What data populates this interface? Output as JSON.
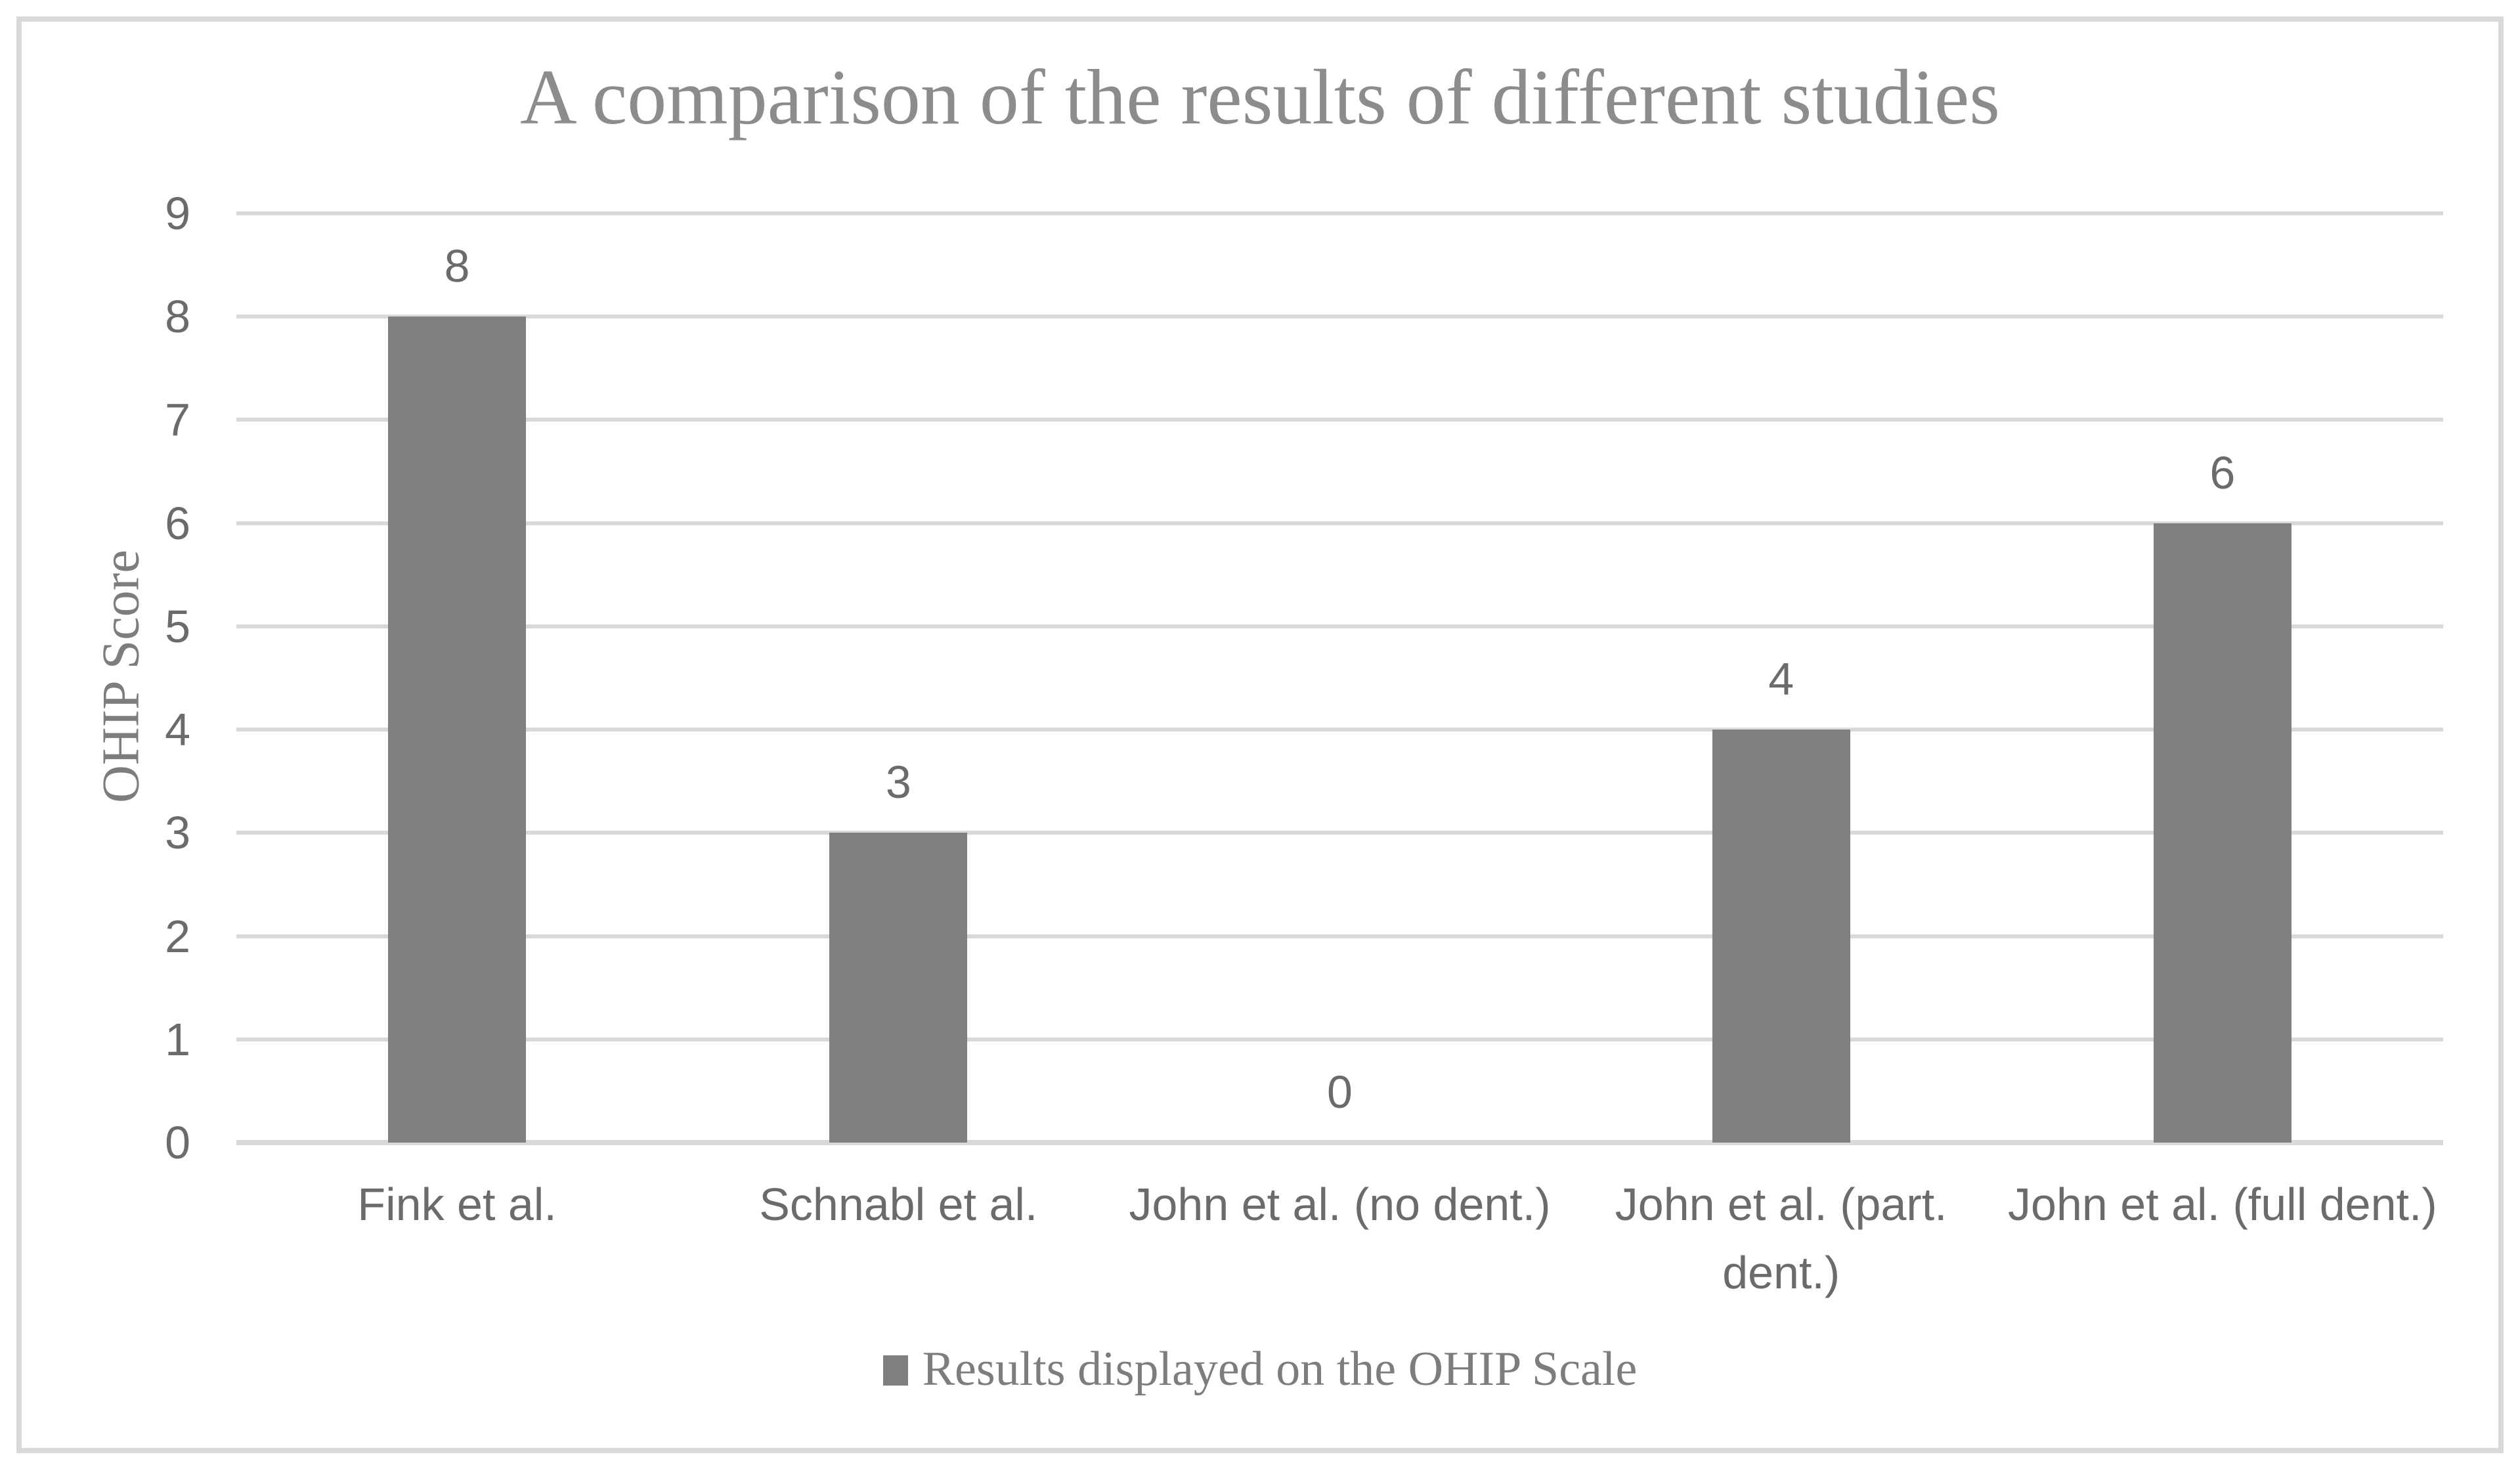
{
  "chart_data": {
    "type": "bar",
    "title": "A comparison of the results of different studies",
    "categories": [
      "Fink et al.",
      "Schnabl et al.",
      "John et al. (no dent.)",
      "John et al. (part. dent.)",
      "John et al. (full dent.)"
    ],
    "values": [
      8,
      3,
      0,
      4,
      6
    ],
    "series": [
      {
        "name": "Results displayed on the OHIP Scale",
        "values": [
          8,
          3,
          0,
          4,
          6
        ]
      }
    ],
    "data_labels": [
      "8",
      "3",
      "0",
      "4",
      "6"
    ],
    "xlabel": "",
    "ylabel": "OHIP Score",
    "ylim": [
      0,
      9
    ],
    "ytick_interval": 1,
    "yticks": [
      "0",
      "1",
      "2",
      "3",
      "4",
      "5",
      "6",
      "7",
      "8",
      "9"
    ],
    "grid": true,
    "legend": {
      "position": "bottom",
      "entries": [
        "Results displayed on the OHIP Scale"
      ]
    },
    "colors": {
      "bar": "#7F7F7F",
      "gridline": "#D9D9D9",
      "frame_border": "#D9D9D9",
      "title_text": "#8C8C8C",
      "axis_text": "#6B6B6B",
      "serif_text": "#7D7D7D",
      "background": "#FFFFFF"
    }
  }
}
